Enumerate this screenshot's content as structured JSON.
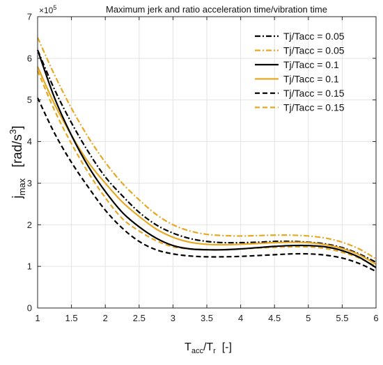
{
  "chart_data": {
    "type": "line",
    "title": "Maximum jerk and ratio acceleration time/vibration time",
    "xlabel": {
      "main": "T",
      "sub1": "acc",
      "slash": "/T",
      "sub2": "r",
      "unit": "  [-]"
    },
    "ylabel": {
      "main": "j",
      "sub": "max",
      "unit": "[rad/s",
      "sup": "3",
      "close": "]"
    },
    "y_exponent": {
      "base": "×10",
      "power": "5"
    },
    "xlim": [
      1,
      6
    ],
    "ylim": [
      0,
      7
    ],
    "x_ticks": [
      {
        "value": 1,
        "label": "1"
      },
      {
        "value": 1.5,
        "label": "1.5"
      },
      {
        "value": 2,
        "label": "2"
      },
      {
        "value": 2.5,
        "label": "2.5"
      },
      {
        "value": 3,
        "label": "3"
      },
      {
        "value": 3.5,
        "label": "3.5"
      },
      {
        "value": 4,
        "label": "4"
      },
      {
        "value": 4.5,
        "label": "4.5"
      },
      {
        "value": 5,
        "label": "5"
      },
      {
        "value": 5.5,
        "label": "5.5"
      },
      {
        "value": 6,
        "label": "6"
      }
    ],
    "y_ticks": [
      {
        "value": 0,
        "label": "0"
      },
      {
        "value": 1,
        "label": "1"
      },
      {
        "value": 2,
        "label": "2"
      },
      {
        "value": 3,
        "label": "3"
      },
      {
        "value": 4,
        "label": "4"
      },
      {
        "value": 5,
        "label": "5"
      },
      {
        "value": 6,
        "label": "6"
      },
      {
        "value": 7,
        "label": "7"
      }
    ],
    "grid": true,
    "legend_position": "top-right",
    "x": [
      1.0,
      1.25,
      1.5,
      1.75,
      2.0,
      2.25,
      2.5,
      2.75,
      3.0,
      3.25,
      3.5,
      3.75,
      4.0,
      4.25,
      4.5,
      4.75,
      5.0,
      5.25,
      5.5,
      5.75,
      6.0
    ],
    "series": [
      {
        "name": "Tj/Tacc = 0.05",
        "color": "#000000",
        "dash": "dashdot",
        "values": [
          6.2,
          5.25,
          4.45,
          3.75,
          3.15,
          2.7,
          2.3,
          2.0,
          1.8,
          1.67,
          1.6,
          1.57,
          1.57,
          1.58,
          1.6,
          1.6,
          1.58,
          1.54,
          1.45,
          1.3,
          1.1
        ]
      },
      {
        "name": "Tj/Tacc = 0.05",
        "color": "#e6a821",
        "dash": "dashdot",
        "values": [
          6.5,
          5.6,
          4.8,
          4.1,
          3.5,
          3.0,
          2.6,
          2.25,
          2.0,
          1.85,
          1.77,
          1.74,
          1.73,
          1.74,
          1.75,
          1.75,
          1.73,
          1.68,
          1.58,
          1.42,
          1.18
        ]
      },
      {
        "name": "Tj/Tacc = 0.1",
        "color": "#000000",
        "dash": "solid",
        "values": [
          6.2,
          5.05,
          4.15,
          3.4,
          2.8,
          2.3,
          1.95,
          1.68,
          1.5,
          1.42,
          1.4,
          1.4,
          1.42,
          1.45,
          1.48,
          1.5,
          1.5,
          1.47,
          1.38,
          1.22,
          0.97
        ]
      },
      {
        "name": "Tj/Tacc = 0.1",
        "color": "#e6a821",
        "dash": "solid",
        "values": [
          5.8,
          4.9,
          4.15,
          3.5,
          3.0,
          2.55,
          2.2,
          1.9,
          1.7,
          1.58,
          1.53,
          1.52,
          1.53,
          1.55,
          1.57,
          1.58,
          1.57,
          1.52,
          1.43,
          1.28,
          1.05
        ]
      },
      {
        "name": "Tj/Tacc = 0.15",
        "color": "#000000",
        "dash": "dashed",
        "values": [
          5.05,
          4.2,
          3.5,
          2.9,
          2.35,
          1.92,
          1.6,
          1.4,
          1.3,
          1.25,
          1.23,
          1.23,
          1.24,
          1.26,
          1.28,
          1.3,
          1.3,
          1.27,
          1.2,
          1.07,
          0.88
        ]
      },
      {
        "name": "Tj/Tacc = 0.15",
        "color": "#e6a821",
        "dash": "dashed",
        "values": [
          5.7,
          4.75,
          3.95,
          3.25,
          2.65,
          2.15,
          1.85,
          1.62,
          1.47,
          1.42,
          1.4,
          1.4,
          1.42,
          1.44,
          1.46,
          1.47,
          1.47,
          1.43,
          1.34,
          1.2,
          1.0
        ]
      }
    ]
  }
}
